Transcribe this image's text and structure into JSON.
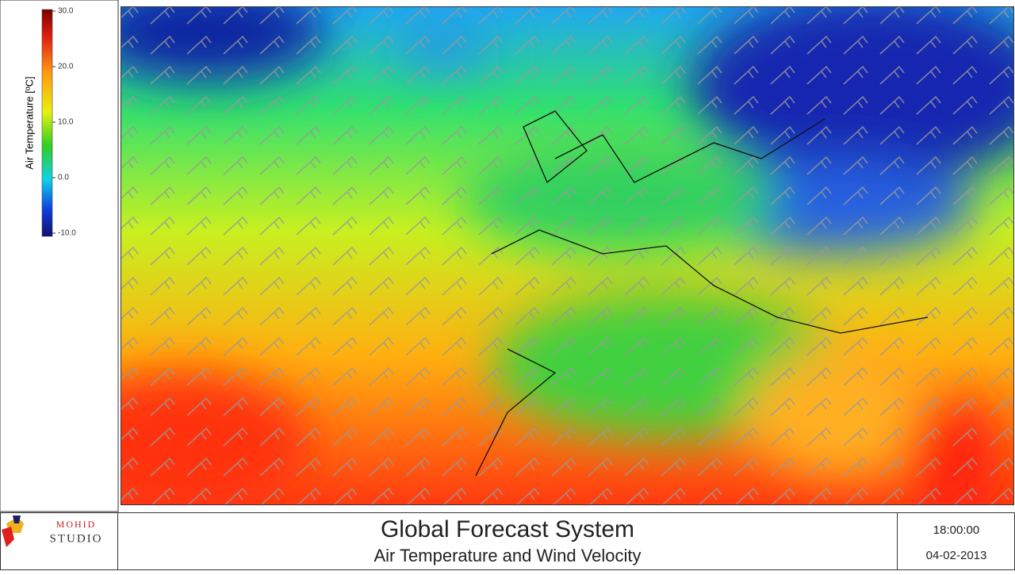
{
  "colorbar": {
    "label": "Air Temperature [ºC]",
    "lim": [
      -10,
      30
    ],
    "ticks": [
      {
        "value": 30,
        "label": "30.0"
      },
      {
        "value": 20,
        "label": "20.0"
      },
      {
        "value": 10,
        "label": "10.0"
      },
      {
        "value": 0,
        "label": "0.0"
      },
      {
        "value": -10,
        "label": "-10.0"
      }
    ]
  },
  "logo": {
    "line1": "MOHID",
    "line2": "STUDIO"
  },
  "footer": {
    "title": "Global Forecast System",
    "subtitle": "Air Temperature and Wind Velocity",
    "time": "18:00:00",
    "date": "04-02-2013"
  }
}
